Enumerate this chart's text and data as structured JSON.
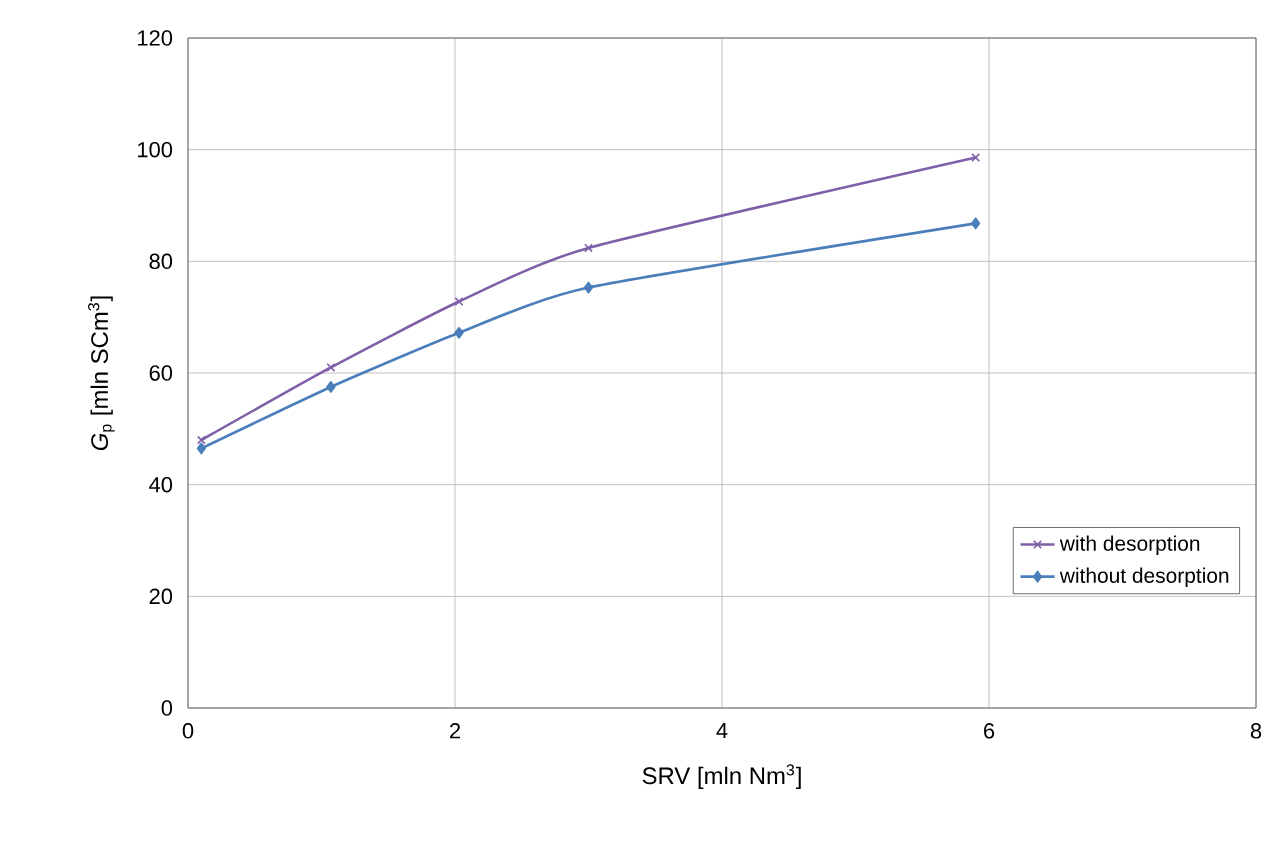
{
  "chart_data": {
    "type": "line",
    "xlabel": "SRV [mln Nm$^{3}$]",
    "ylabel": "*G*$_{p}$ [mln SCm$^{3}$]",
    "x": [
      0.1,
      1.07,
      2.03,
      3.0,
      5.9
    ],
    "series": [
      {
        "name": "with desorption",
        "color": "#7f5fa8",
        "marker": "cross",
        "values": [
          48,
          61,
          72.8,
          82.4,
          98.6
        ]
      },
      {
        "name": "without desorption",
        "color": "#4a7ebb",
        "marker": "diamond",
        "values": [
          46.5,
          57.5,
          67.2,
          75.3,
          86.8
        ]
      }
    ],
    "xlim": [
      0,
      8
    ],
    "xticks": [
      0,
      2,
      4,
      6,
      8
    ],
    "ylim": [
      0,
      120
    ],
    "yticks": [
      0,
      20,
      40,
      60,
      80,
      100,
      120
    ],
    "grid": true,
    "legend": "bottom right"
  }
}
